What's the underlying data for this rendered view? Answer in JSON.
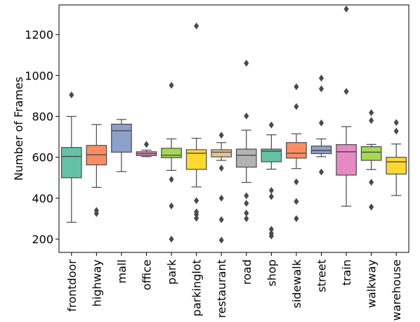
{
  "chart_data": {
    "type": "box",
    "title": "",
    "xlabel": "",
    "ylabel": "Number of Frames",
    "ylim": [
      135,
      1345
    ],
    "yticks": [
      200,
      400,
      600,
      800,
      1000,
      1200
    ],
    "grid": false,
    "legend": "none",
    "categories": [
      "frontdoor",
      "highway",
      "mall",
      "office",
      "park",
      "parkinglot",
      "restaurant",
      "road",
      "shop",
      "sidewalk",
      "street",
      "train",
      "walkway",
      "warehouse"
    ],
    "colors": [
      "#66c2a5",
      "#fc8d62",
      "#8da0cb",
      "#e78ac3",
      "#a6d854",
      "#ffd92f",
      "#e5c494",
      "#b3b3b3",
      "#66c2a5",
      "#fc8d62",
      "#8da0cb",
      "#e78ac3",
      "#a6d854",
      "#ffd92f"
    ],
    "boxes": [
      {
        "category": "frontdoor",
        "whisker_low": 282,
        "q1": 500,
        "median": 604,
        "q3": 648,
        "whisker_high": 800,
        "outliers": [
          905
        ]
      },
      {
        "category": "highway",
        "whisker_low": 453,
        "q1": 563,
        "median": 612,
        "q3": 658,
        "whisker_high": 760,
        "outliers": [
          340,
          325
        ]
      },
      {
        "category": "mall",
        "whisker_low": 530,
        "q1": 625,
        "median": 730,
        "q3": 762,
        "whisker_high": 785,
        "outliers": []
      },
      {
        "category": "office",
        "whisker_low": 603,
        "q1": 608,
        "median": 618,
        "q3": 627,
        "whisker_high": 635,
        "outliers": [
          663
        ]
      },
      {
        "category": "park",
        "whisker_low": 536,
        "q1": 598,
        "median": 610,
        "q3": 644,
        "whisker_high": 690,
        "outliers": [
          952,
          492,
          362,
          200
        ]
      },
      {
        "category": "parkinglot",
        "whisker_low": 455,
        "q1": 541,
        "median": 620,
        "q3": 637,
        "whisker_high": 693,
        "outliers": [
          1242,
          388,
          333,
          320,
          302
        ]
      },
      {
        "category": "restaurant",
        "whisker_low": 585,
        "q1": 602,
        "median": 625,
        "q3": 637,
        "whisker_high": 672,
        "outliers": [
          708,
          547,
          400,
          295,
          195
        ]
      },
      {
        "category": "road",
        "whisker_low": 477,
        "q1": 552,
        "median": 610,
        "q3": 640,
        "whisker_high": 733,
        "outliers": [
          1060,
          802,
          412,
          375,
          327,
          300
        ]
      },
      {
        "category": "shop",
        "whisker_low": 542,
        "q1": 578,
        "median": 630,
        "q3": 640,
        "whisker_high": 710,
        "outliers": [
          758,
          438,
          408,
          248,
          228,
          215
        ]
      },
      {
        "category": "sidewalk",
        "whisker_low": 545,
        "q1": 596,
        "median": 620,
        "q3": 672,
        "whisker_high": 715,
        "outliers": [
          945,
          848,
          480,
          384,
          300
        ]
      },
      {
        "category": "street",
        "whisker_low": 603,
        "q1": 618,
        "median": 633,
        "q3": 655,
        "whisker_high": 690,
        "outliers": [
          987,
          935,
          768,
          528
        ]
      },
      {
        "category": "train",
        "whisker_low": 361,
        "q1": 513,
        "median": 627,
        "q3": 662,
        "whisker_high": 750,
        "outliers": [
          1325,
          922
        ]
      },
      {
        "category": "walkway",
        "whisker_low": 540,
        "q1": 585,
        "median": 625,
        "q3": 652,
        "whisker_high": 663,
        "outliers": [
          818,
          780,
          478,
          357
        ]
      },
      {
        "category": "warehouse",
        "whisker_low": 413,
        "q1": 518,
        "median": 578,
        "q3": 600,
        "whisker_high": 665,
        "outliers": [
          770,
          728
        ]
      }
    ]
  }
}
